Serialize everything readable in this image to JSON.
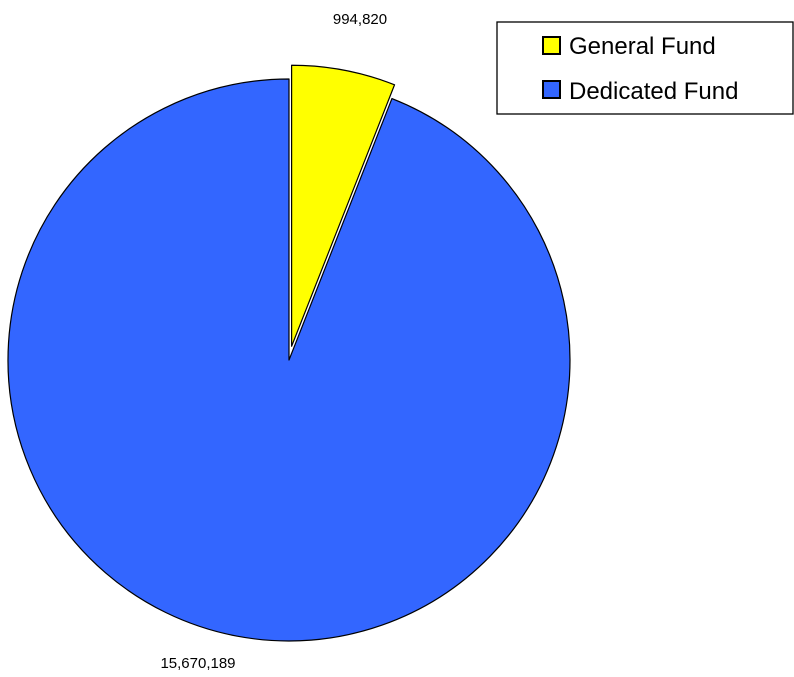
{
  "chart_data": {
    "type": "pie",
    "title": "",
    "slices": [
      {
        "label": "General Fund",
        "value": 994820,
        "value_label": "994,820",
        "color": "#ffff00",
        "exploded": true
      },
      {
        "label": "Dedicated Fund",
        "value": 15670189,
        "value_label": "15,670,189",
        "color": "#3366ff",
        "exploded": false
      }
    ],
    "start_angle": "12 o'clock",
    "direction": "clockwise",
    "legend": {
      "placement": "top-right",
      "entries": [
        "General Fund",
        "Dedicated Fund"
      ]
    }
  }
}
